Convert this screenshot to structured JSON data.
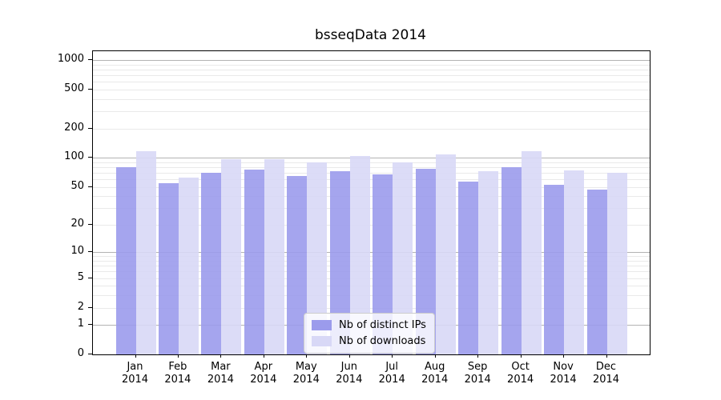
{
  "chart_data": {
    "type": "bar",
    "title": "bsseqData 2014",
    "categories": [
      "Jan 2014",
      "Feb 2014",
      "Mar 2014",
      "Apr 2014",
      "May 2014",
      "Jun 2014",
      "Jul 2014",
      "Aug 2014",
      "Sep 2014",
      "Oct 2014",
      "Nov 2014",
      "Dec 2014"
    ],
    "series": [
      {
        "name": "Nb of distinct IPs",
        "color": "#9b9bec",
        "values": [
          80,
          55,
          70,
          75,
          65,
          73,
          68,
          77,
          57,
          80,
          53,
          47
        ]
      },
      {
        "name": "Nb of downloads",
        "color": "#d8d8f6",
        "values": [
          116,
          62,
          97,
          97,
          89,
          104,
          90,
          109,
          73,
          116,
          74,
          70
        ]
      }
    ],
    "xlabel": "",
    "ylabel": "",
    "y_ticks": [
      0,
      1,
      2,
      5,
      10,
      20,
      50,
      100,
      200,
      500,
      1000
    ],
    "yscale": "log10(value+1)",
    "ylim": [
      0,
      1230
    ],
    "grid": "horizontal, major and minor log gridlines",
    "legend_position": "lower center",
    "colors": {
      "major_grid": "#b3b3b3",
      "minor_grid": "#e9e9e9",
      "frame": "#000000",
      "text": "#000000",
      "background": "#ffffff"
    }
  }
}
